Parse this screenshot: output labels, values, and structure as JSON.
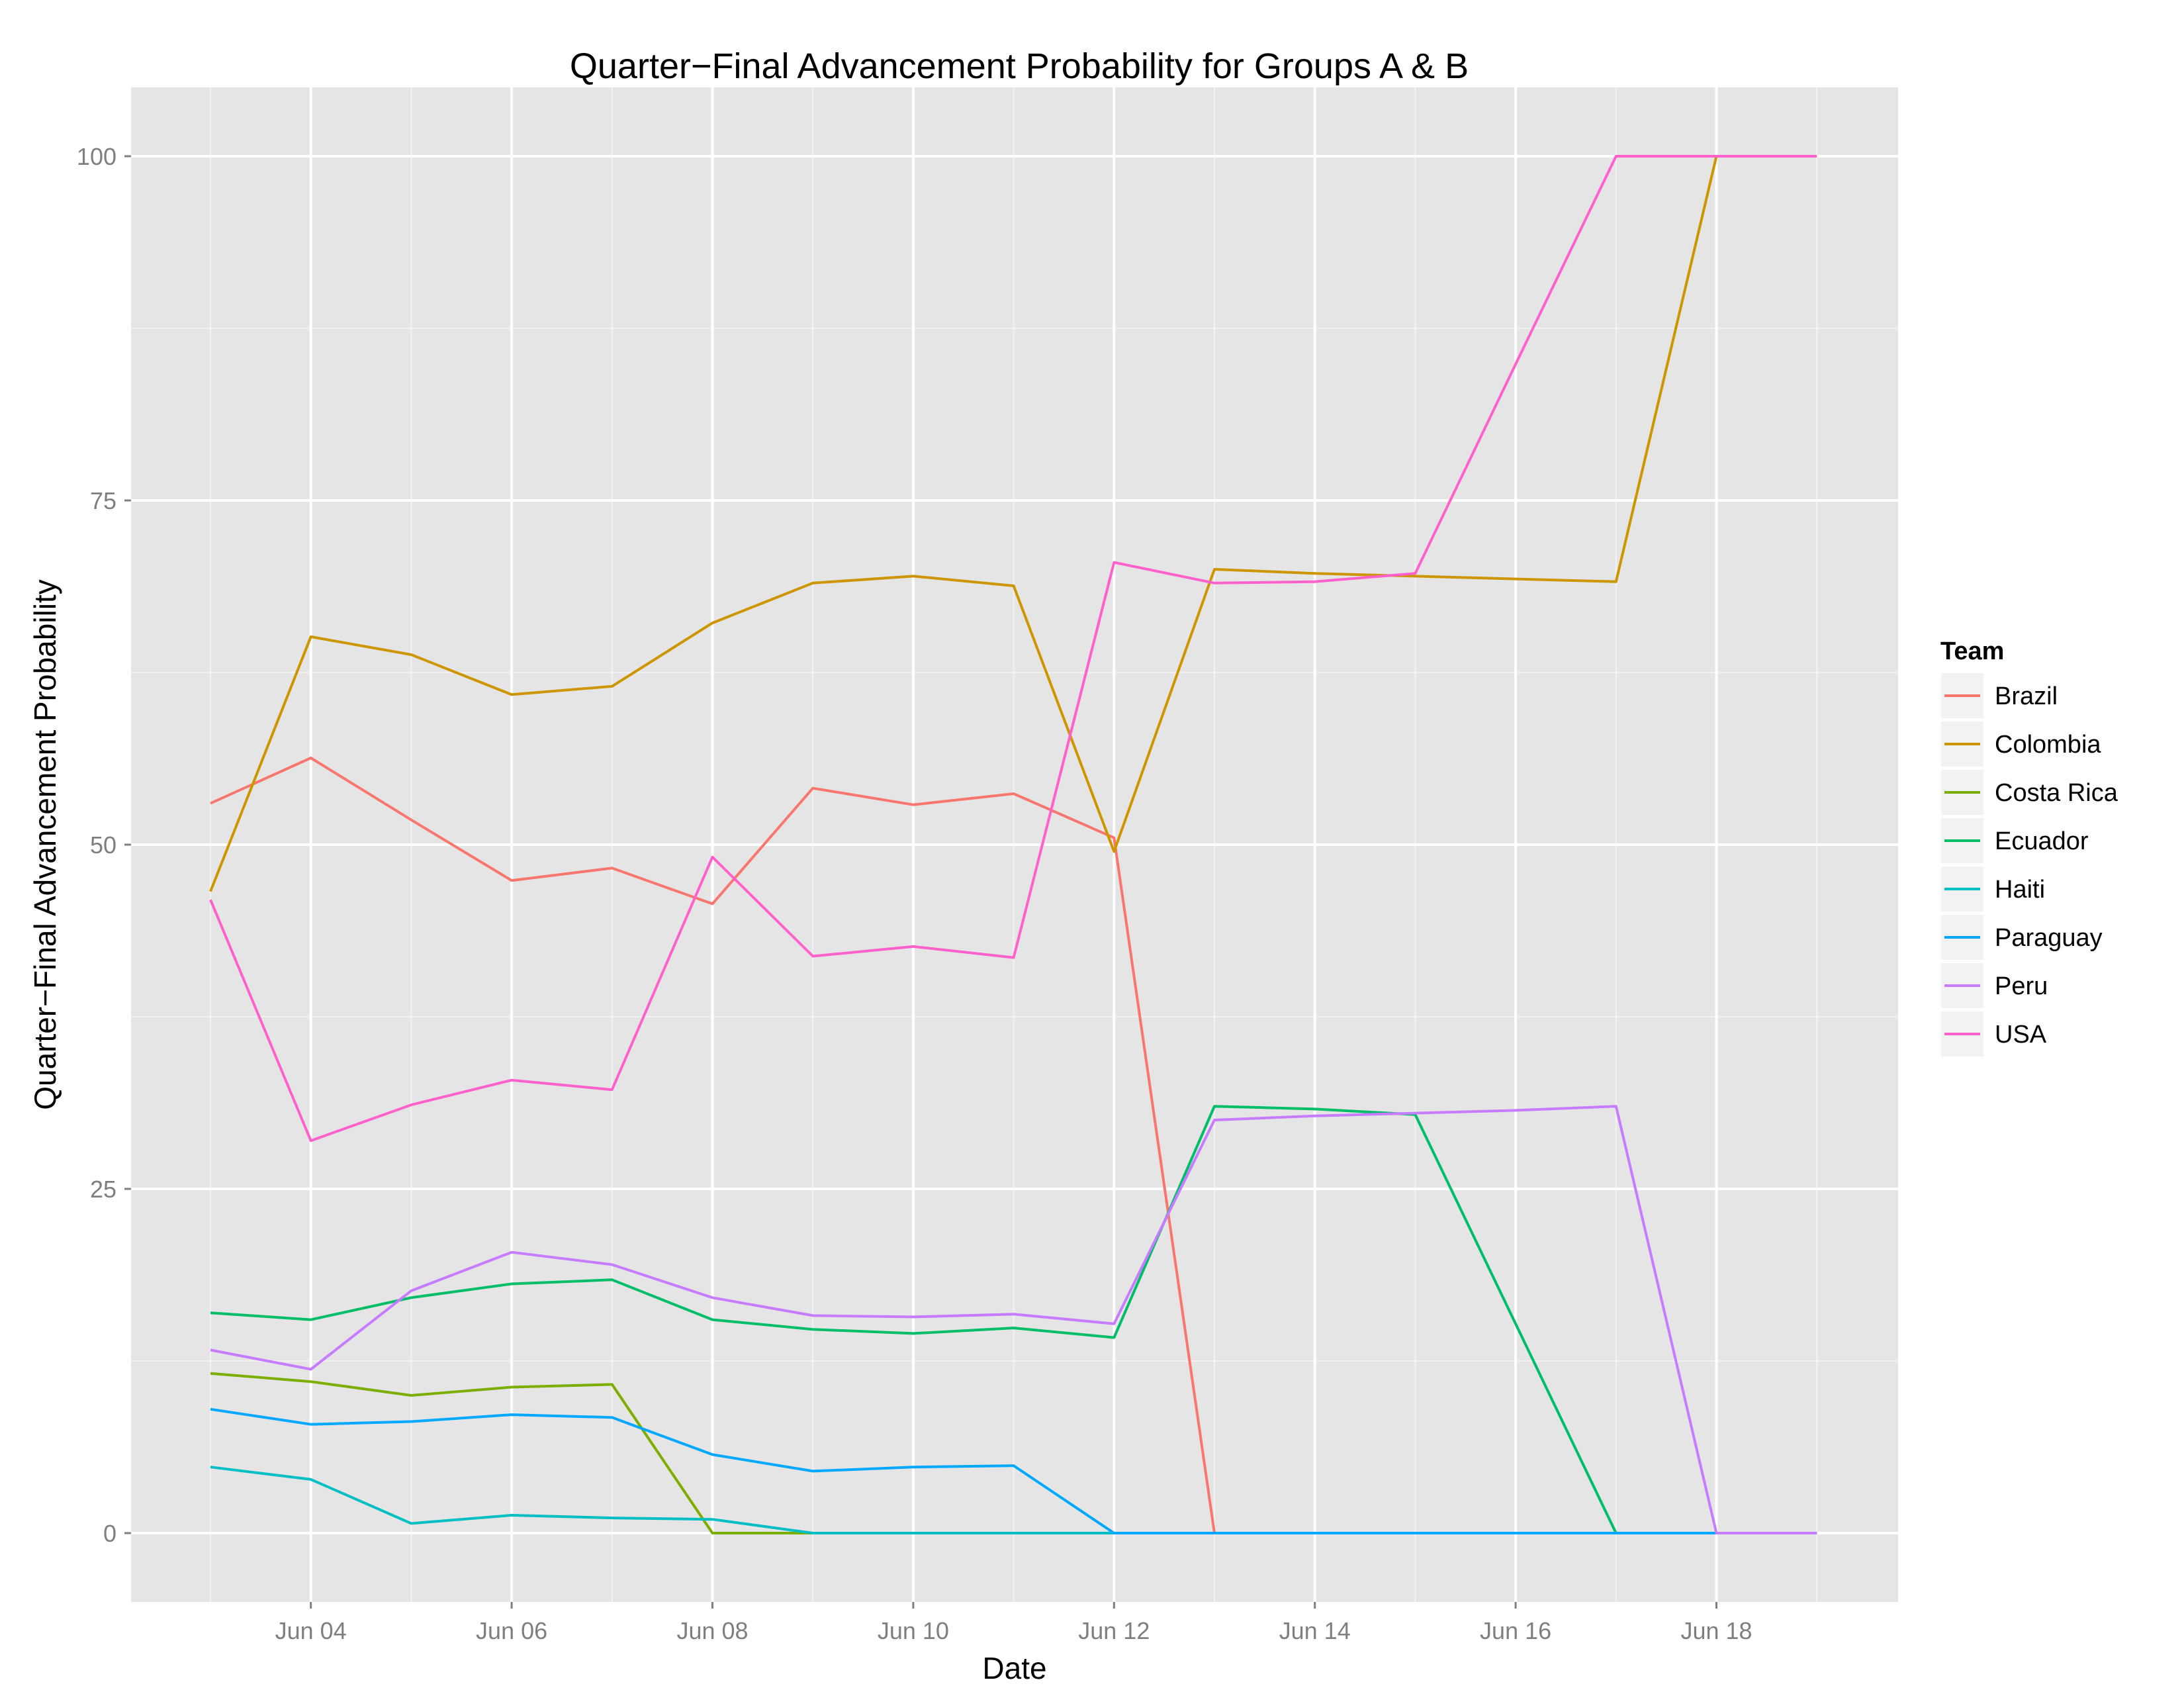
{
  "chart_data": {
    "type": "line",
    "title": "Quarter−Final Advancement Probability for Groups A & B",
    "xlabel": "Date",
    "ylabel": "Quarter−Final Advancement Probability",
    "x": [
      "Jun 03",
      "Jun 04",
      "Jun 05",
      "Jun 06",
      "Jun 07",
      "Jun 08",
      "Jun 09",
      "Jun 10",
      "Jun 11",
      "Jun 12",
      "Jun 13",
      "Jun 14",
      "Jun 15",
      "Jun 16",
      "Jun 17",
      "Jun 18",
      "Jun 19"
    ],
    "x_ticks": [
      "Jun 04",
      "Jun 06",
      "Jun 08",
      "Jun 10",
      "Jun 12",
      "Jun 14",
      "Jun 16",
      "Jun 18"
    ],
    "y_ticks": [
      "0",
      "25",
      "50",
      "75",
      "100"
    ],
    "ylim": [
      -5,
      105
    ],
    "grid": true,
    "legend": {
      "title": "Team",
      "position": "right"
    },
    "series": [
      {
        "name": "Brazil",
        "color": "#F8766D",
        "values": [
          53.0,
          56.3,
          51.8,
          47.4,
          48.3,
          45.7,
          54.1,
          52.9,
          53.7,
          50.5,
          0,
          0,
          0,
          0,
          0,
          0,
          0
        ]
      },
      {
        "name": "Colombia",
        "color": "#CD9600",
        "values": [
          46.6,
          65.1,
          63.8,
          60.9,
          61.5,
          66.1,
          69.0,
          69.5,
          68.8,
          49.5,
          70.0,
          69.7,
          69.5,
          69.3,
          69.1,
          100,
          100
        ]
      },
      {
        "name": "Costa Rica",
        "color": "#7CAE00",
        "values": [
          11.6,
          11.0,
          10.0,
          10.6,
          10.8,
          0,
          0,
          0,
          0,
          0,
          0,
          0,
          0,
          0,
          0,
          0,
          0
        ]
      },
      {
        "name": "Ecuador",
        "color": "#00BE67",
        "values": [
          16.0,
          15.5,
          17.1,
          18.1,
          18.4,
          15.5,
          14.8,
          14.5,
          14.9,
          14.2,
          31.0,
          30.8,
          30.4,
          15.2,
          0,
          0,
          0
        ]
      },
      {
        "name": "Haiti",
        "color": "#00BFC4",
        "values": [
          4.8,
          3.9,
          0.7,
          1.3,
          1.1,
          1.0,
          0,
          0,
          0,
          0,
          0,
          0,
          0,
          0,
          0,
          0,
          0
        ]
      },
      {
        "name": "Paraguay",
        "color": "#00A9FF",
        "values": [
          9.0,
          7.9,
          8.1,
          8.6,
          8.4,
          5.7,
          4.5,
          4.8,
          4.9,
          0,
          0,
          0,
          0,
          0,
          0,
          0,
          0
        ]
      },
      {
        "name": "Peru",
        "color": "#C77CFF",
        "values": [
          13.3,
          11.9,
          17.6,
          20.4,
          19.5,
          17.1,
          15.8,
          15.7,
          15.9,
          15.2,
          30.0,
          30.3,
          30.5,
          30.7,
          31.0,
          0,
          0
        ]
      },
      {
        "name": "USA",
        "color": "#FF61CC",
        "values": [
          46.0,
          28.5,
          31.1,
          32.9,
          32.2,
          49.1,
          41.9,
          42.6,
          41.8,
          70.5,
          69.0,
          69.1,
          69.7,
          84.9,
          100,
          100,
          100
        ]
      }
    ]
  }
}
